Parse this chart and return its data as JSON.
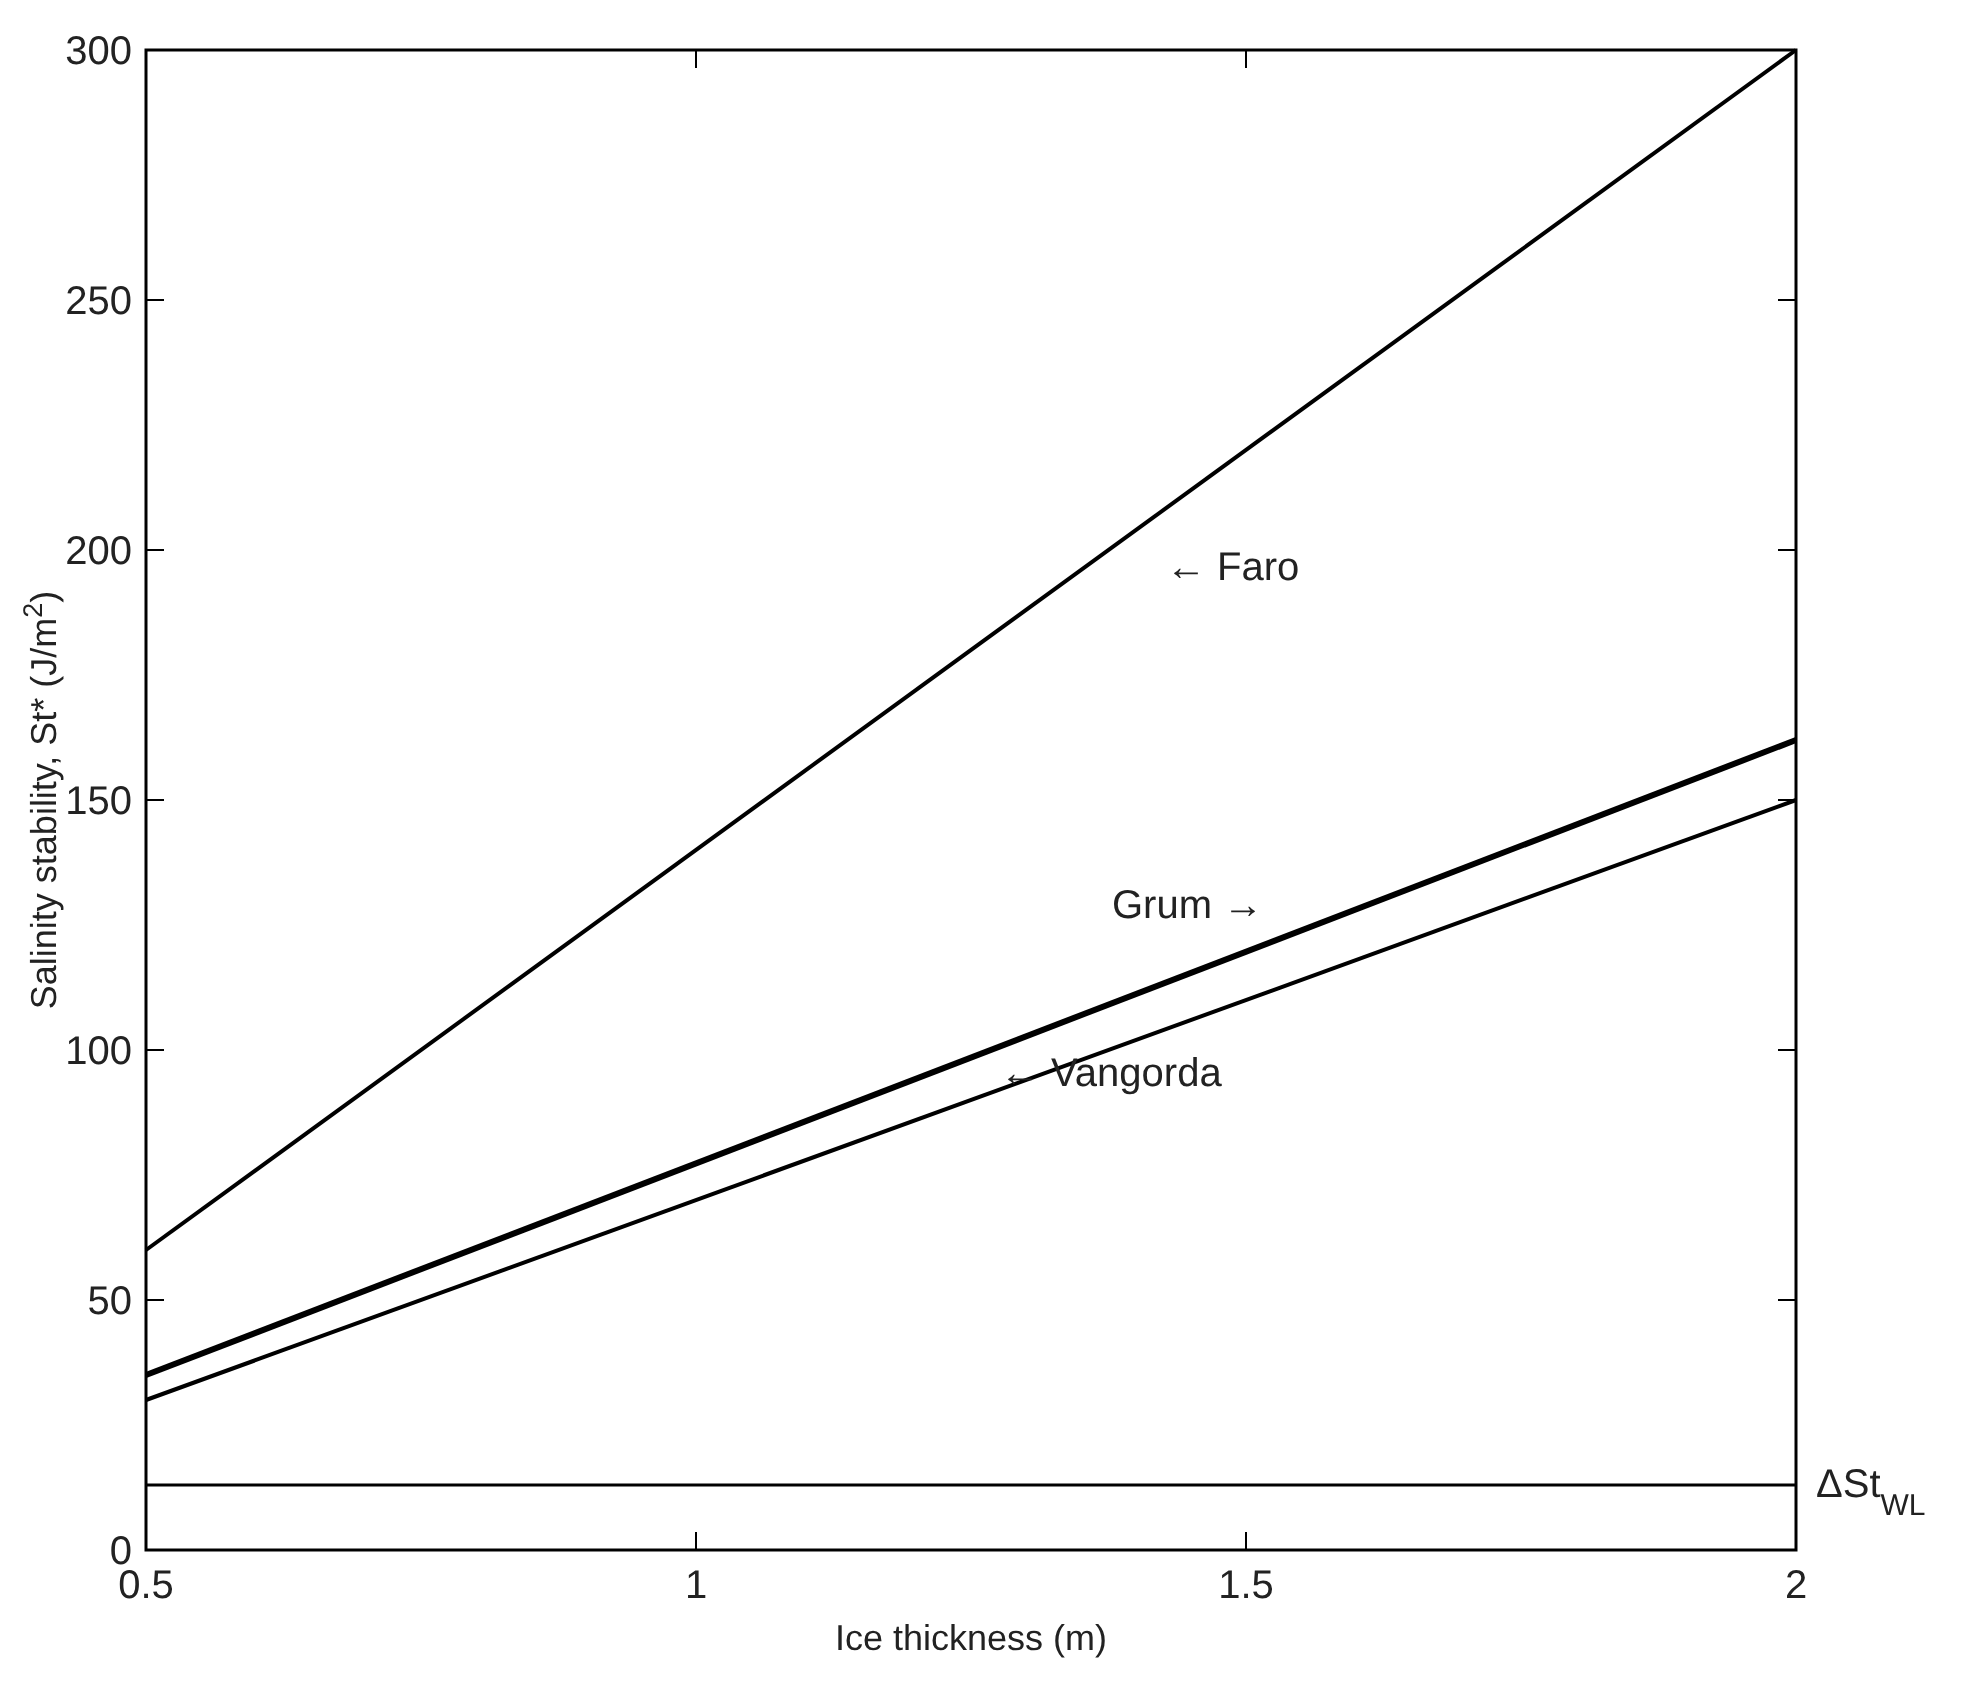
{
  "chart_data": {
    "type": "line",
    "xlabel": "Ice thickness (m)",
    "ylabel": "Salinity stability, St* (J/m$^{2}$)",
    "x": [
      0.5,
      2
    ],
    "series": [
      {
        "color": "#000000",
        "values": [
          60,
          300
        ]
      },
      {
        "color": "#000000",
        "values": [
          35,
          162
        ]
      },
      {
        "color": "#000000",
        "values": [
          30,
          150
        ]
      }
    ],
    "xlim": [
      0.5,
      2
    ],
    "xticks": [
      0.5,
      1,
      1.5,
      2
    ],
    "ylim": [
      0,
      300
    ],
    "yticks": [
      0,
      50,
      100,
      150,
      200,
      250,
      300
    ],
    "ref_lines": [
      {
        "axis": "y",
        "value": 13,
        "label": "ΔSt$_{WL}$",
        "color": "#000000"
      }
    ],
    "annotations": [
      "← Faro",
      "Grum →",
      "← Vangorda"
    ],
    "grid": false,
    "marker": "none",
    "line_style": "solid"
  }
}
